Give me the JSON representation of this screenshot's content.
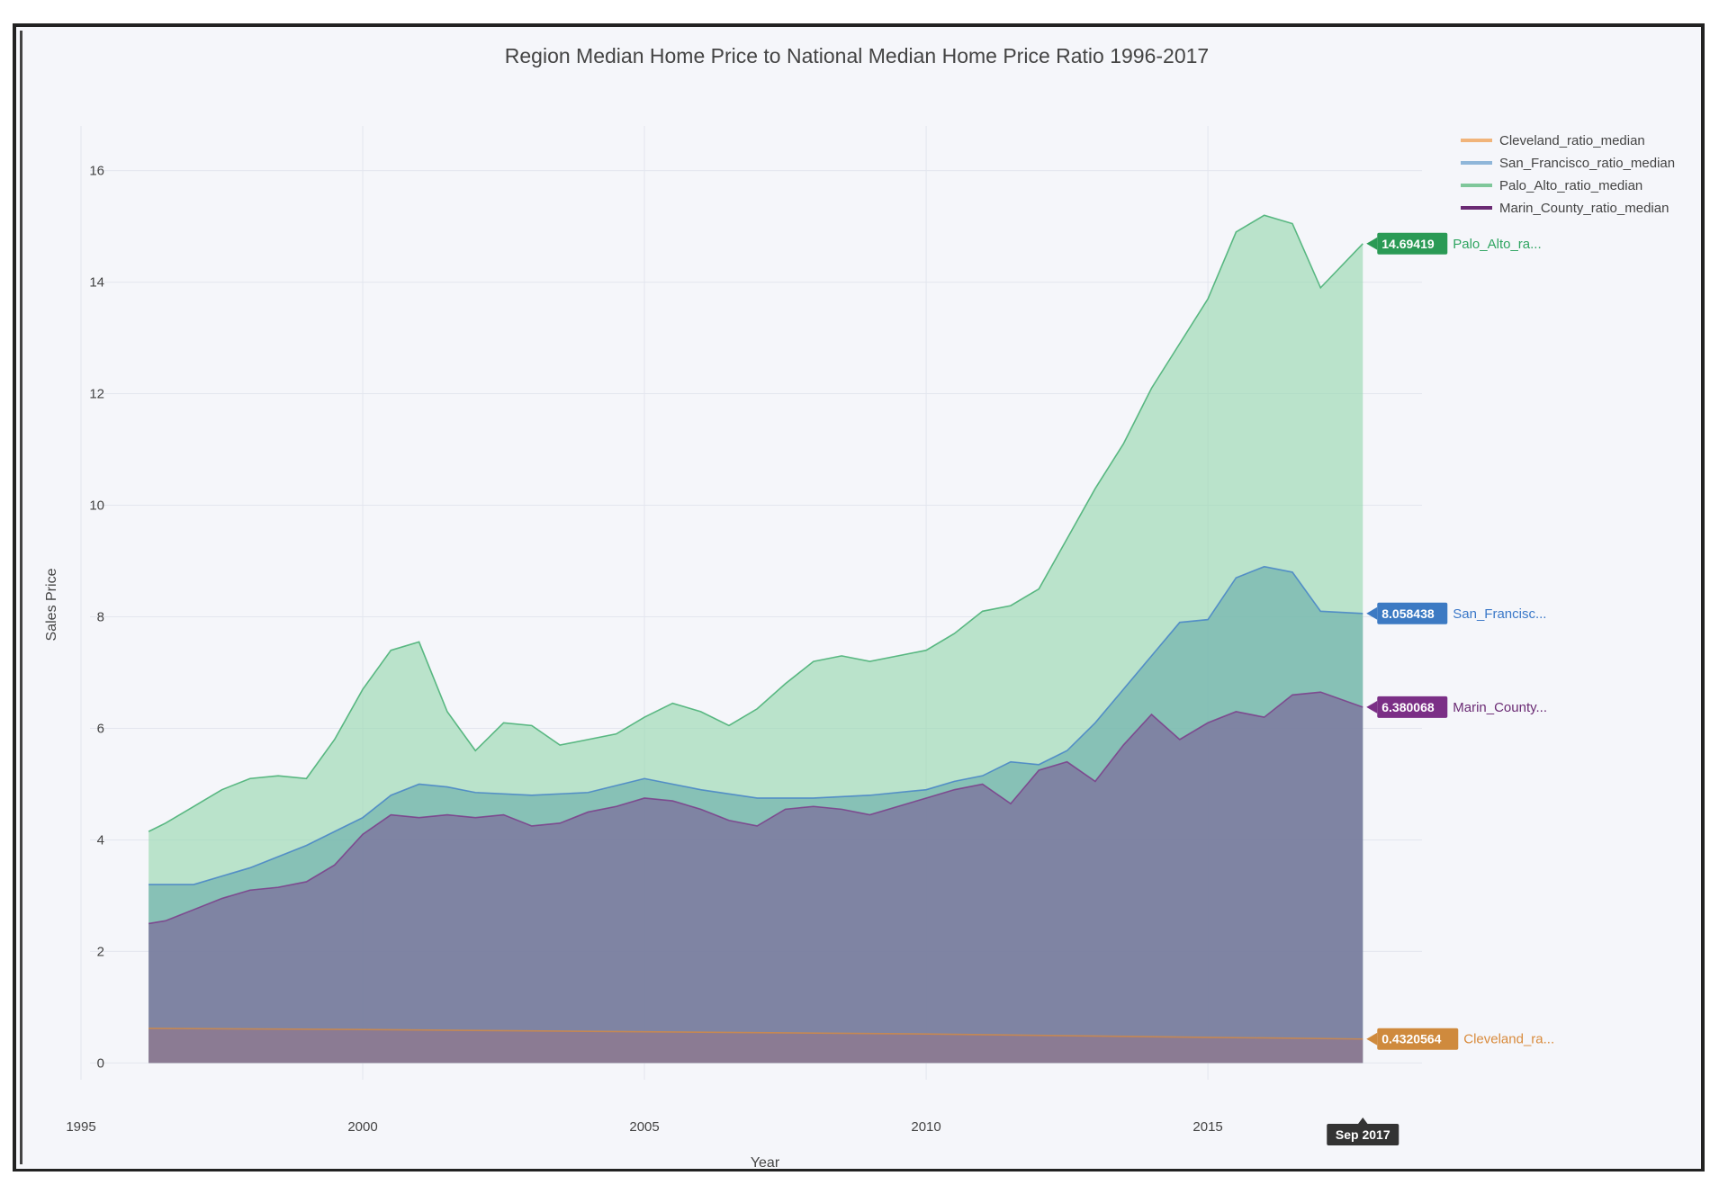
{
  "chart_data": {
    "type": "area",
    "title": "Region Median Home Price to National Median Home Price Ratio 1996-2017",
    "xlabel": "Year",
    "ylabel": "Sales Price",
    "xlim": [
      1995,
      2018.8
    ],
    "ylim": [
      -0.3,
      16.8
    ],
    "x_ticks": [
      1995,
      2000,
      2005,
      2010,
      2015
    ],
    "x_tick_labels": [
      "1995",
      "2000",
      "2005",
      "2010",
      "2015"
    ],
    "y_ticks": [
      0,
      2,
      4,
      6,
      8,
      10,
      12,
      14,
      16
    ],
    "hover_x_label": "Sep 2017",
    "legend_position": "top-right",
    "grid": true,
    "series": [
      {
        "name": "Cleveland_ratio_median",
        "color": "#d98b3c",
        "tag_color": "#cf8a3d",
        "tag_value": "0.4320564",
        "tag_label": "Cleveland_ra...",
        "x": [
          1996.2,
          2000,
          2005,
          2010,
          2015,
          2017.75
        ],
        "y": [
          0.62,
          0.6,
          0.56,
          0.52,
          0.46,
          0.43
        ]
      },
      {
        "name": "San_Francisco_ratio_median",
        "color": "#3a78c8",
        "tag_color": "#3c7ac3",
        "tag_value": "8.058438",
        "tag_label": "San_Francisc...",
        "x": [
          1996.2,
          1997,
          1998,
          1999,
          2000,
          2000.5,
          2001,
          2001.5,
          2002,
          2003,
          2004,
          2005,
          2006,
          2007,
          2008,
          2009,
          2010,
          2010.5,
          2011,
          2011.5,
          2012,
          2012.5,
          2013,
          2013.5,
          2014,
          2014.5,
          2015,
          2015.5,
          2016,
          2016.5,
          2017,
          2017.75
        ],
        "y": [
          3.2,
          3.2,
          3.5,
          3.9,
          4.4,
          4.8,
          5.0,
          4.95,
          4.85,
          4.8,
          4.85,
          5.1,
          4.9,
          4.75,
          4.75,
          4.8,
          4.9,
          5.05,
          5.15,
          5.4,
          5.35,
          5.6,
          6.1,
          6.7,
          7.3,
          7.9,
          7.95,
          8.7,
          8.9,
          8.8,
          8.1,
          8.06
        ]
      },
      {
        "name": "Palo_Alto_ratio_median",
        "color": "#2fa561",
        "tag_color": "#2a9a55",
        "tag_value": "14.69419",
        "tag_label": "Palo_Alto_ra...",
        "x": [
          1996.2,
          1996.5,
          1997,
          1997.5,
          1998,
          1998.5,
          1999,
          1999.5,
          2000,
          2000.5,
          2001,
          2001.5,
          2002,
          2002.5,
          2003,
          2003.5,
          2004,
          2004.5,
          2005,
          2005.5,
          2006,
          2006.5,
          2007,
          2007.5,
          2008,
          2008.5,
          2009,
          2009.5,
          2010,
          2010.5,
          2011,
          2011.5,
          2012,
          2012.5,
          2013,
          2013.5,
          2014,
          2014.5,
          2015,
          2015.5,
          2016,
          2016.5,
          2017,
          2017.75
        ],
        "y": [
          4.15,
          4.3,
          4.6,
          4.9,
          5.1,
          5.15,
          5.1,
          5.8,
          6.7,
          7.4,
          7.55,
          6.3,
          5.6,
          6.1,
          6.05,
          5.7,
          5.8,
          5.9,
          6.2,
          6.45,
          6.3,
          6.05,
          6.35,
          6.8,
          7.2,
          7.3,
          7.2,
          7.3,
          7.4,
          7.7,
          8.1,
          8.2,
          8.5,
          9.4,
          10.3,
          11.1,
          12.1,
          12.9,
          13.7,
          14.9,
          15.2,
          15.05,
          13.9,
          14.69
        ]
      },
      {
        "name": "Marin_County_ratio_median",
        "color": "#7b2f86",
        "tag_color": "#7b2f86",
        "tag_value": "6.380068",
        "tag_label": "Marin_County...",
        "x": [
          1996.2,
          1996.5,
          1997,
          1997.5,
          1998,
          1998.5,
          1999,
          1999.5,
          2000,
          2000.5,
          2001,
          2001.5,
          2002,
          2002.5,
          2003,
          2003.5,
          2004,
          2004.5,
          2005,
          2005.5,
          2006,
          2006.5,
          2007,
          2007.5,
          2008,
          2008.5,
          2009,
          2009.5,
          2010,
          2010.5,
          2011,
          2011.5,
          2012,
          2012.5,
          2013,
          2013.5,
          2014,
          2014.5,
          2015,
          2015.5,
          2016,
          2016.5,
          2017,
          2017.75
        ],
        "y": [
          2.5,
          2.55,
          2.75,
          2.95,
          3.1,
          3.15,
          3.25,
          3.55,
          4.1,
          4.45,
          4.4,
          4.45,
          4.4,
          4.45,
          4.25,
          4.3,
          4.5,
          4.6,
          4.75,
          4.7,
          4.55,
          4.35,
          4.25,
          4.55,
          4.6,
          4.55,
          4.45,
          4.6,
          4.75,
          4.9,
          5.0,
          4.65,
          5.25,
          5.4,
          5.05,
          5.7,
          6.25,
          5.8,
          6.1,
          6.3,
          6.2,
          6.6,
          6.65,
          6.38
        ]
      }
    ]
  }
}
